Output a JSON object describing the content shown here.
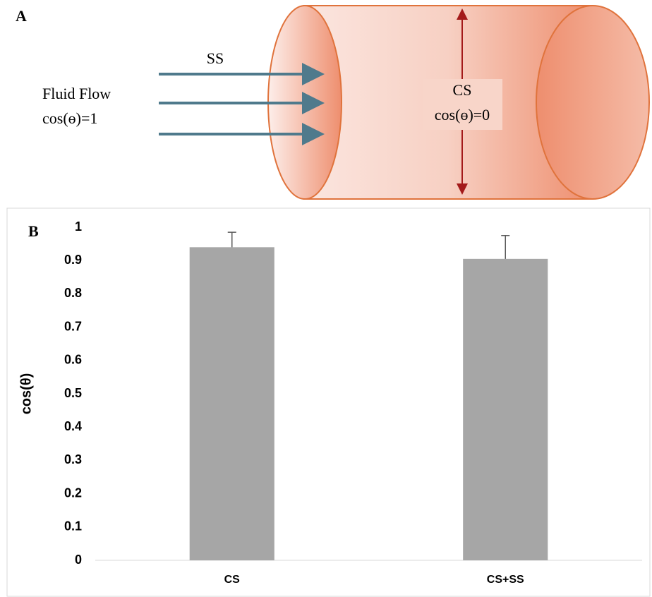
{
  "panel_a": {
    "label": "A",
    "arrow_label": "SS",
    "flow_label": "Fluid Flow",
    "flow_cos": "cos(ɵ)=1",
    "cyl_label": "CS",
    "cyl_cos": "cos(ɵ)=0"
  },
  "chart_data": {
    "type": "bar",
    "panel_label": "B",
    "y_label": "cos(θ)",
    "categories": [
      "CS",
      "CS+SS"
    ],
    "values": [
      0.94,
      0.905
    ],
    "errors": [
      0.045,
      0.07
    ],
    "color": "#a6a6a6",
    "ylim": [
      0,
      1
    ],
    "yticks": [
      0,
      0.1,
      0.2,
      0.3,
      0.4,
      0.5,
      0.6,
      0.7,
      0.8,
      0.9,
      1
    ],
    "grid": false
  }
}
